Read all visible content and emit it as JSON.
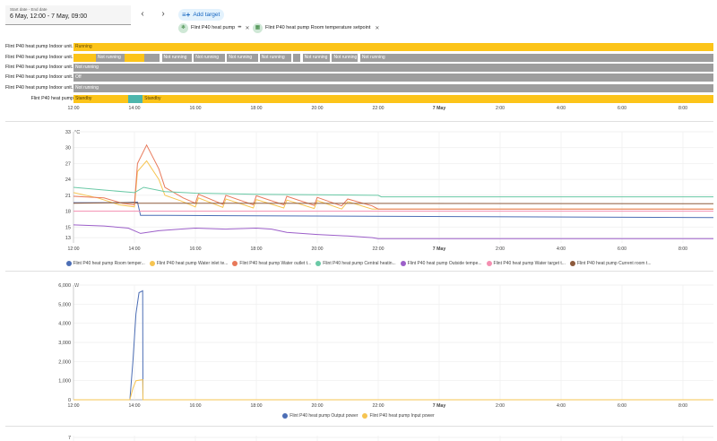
{
  "header": {
    "date_label": "Start date - End date",
    "date_value": "6 May, 12:00 - 7 May, 09:00",
    "add_target": "Add target",
    "targets": [
      {
        "label": "Flint P40 heat pump"
      },
      {
        "label": "Flint P40 heat pump Room temperature setpoint"
      }
    ]
  },
  "timeline": {
    "rows": [
      {
        "name": "Flint P40 heat pump Indoor unit...",
        "segments": [
          {
            "label": "Running",
            "kind": "run",
            "from": 0.0,
            "to": 1.0
          }
        ]
      },
      {
        "name": "Flint P40 heat pump Indoor unit...",
        "segments": [
          {
            "label": "",
            "kind": "run",
            "from": 0.0,
            "to": 0.035
          },
          {
            "label": "Not running",
            "kind": "not",
            "from": 0.035,
            "to": 0.08
          },
          {
            "label": "",
            "kind": "run",
            "from": 0.08,
            "to": 0.11
          },
          {
            "label": "",
            "kind": "not",
            "from": 0.11,
            "to": 0.135
          },
          {
            "label": "Not running",
            "kind": "not",
            "from": 0.138,
            "to": 0.185
          },
          {
            "label": "Not running",
            "kind": "not",
            "from": 0.188,
            "to": 0.237
          },
          {
            "label": "Not running",
            "kind": "not",
            "from": 0.24,
            "to": 0.288
          },
          {
            "label": "Not running",
            "kind": "not",
            "from": 0.291,
            "to": 0.34
          },
          {
            "label": "",
            "kind": "not",
            "from": 0.343,
            "to": 0.355
          },
          {
            "label": "Not running",
            "kind": "not",
            "from": 0.358,
            "to": 0.4
          },
          {
            "label": "Not running",
            "kind": "not",
            "from": 0.404,
            "to": 0.444
          },
          {
            "label": "Not running",
            "kind": "not",
            "from": 0.448,
            "to": 1.0
          }
        ]
      },
      {
        "name": "Flint P40 heat pump Indoor unit...",
        "segments": [
          {
            "label": "Not running",
            "kind": "not",
            "from": 0.0,
            "to": 1.0
          }
        ]
      },
      {
        "name": "Flint P40 heat pump Indoor unit...",
        "segments": [
          {
            "label": "Off",
            "kind": "not",
            "from": 0.0,
            "to": 1.0
          }
        ]
      },
      {
        "name": "Flint P40 heat pump Indoor unit...",
        "segments": [
          {
            "label": "Not running",
            "kind": "not",
            "from": 0.0,
            "to": 1.0
          }
        ]
      },
      {
        "name": "Flint P40 heat pump",
        "segments": [
          {
            "label": "Standby",
            "kind": "stby",
            "from": 0.0,
            "to": 0.085
          },
          {
            "label": "",
            "kind": "stby2",
            "from": 0.085,
            "to": 0.108
          },
          {
            "label": "Standby",
            "kind": "stby",
            "from": 0.108,
            "to": 1.0
          }
        ]
      }
    ]
  },
  "x_ticks": [
    {
      "label": "12:00",
      "t": 0
    },
    {
      "label": "14:00",
      "t": 2
    },
    {
      "label": "16:00",
      "t": 4
    },
    {
      "label": "18:00",
      "t": 6
    },
    {
      "label": "20:00",
      "t": 8
    },
    {
      "label": "22:00",
      "t": 10
    },
    {
      "label": "7 May",
      "t": 12,
      "bold": true
    },
    {
      "label": "2:00",
      "t": 14
    },
    {
      "label": "4:00",
      "t": 16
    },
    {
      "label": "6:00",
      "t": 18
    },
    {
      "label": "8:00",
      "t": 20
    }
  ],
  "chart_data": [
    {
      "type": "line",
      "ylabel": "°C",
      "ylim": [
        12,
        33
      ],
      "yticks": [
        13,
        15,
        18,
        21,
        24,
        27,
        30,
        33
      ],
      "xlim_hours": [
        0,
        21
      ],
      "x_unit": "hours since 6 May 12:00",
      "series": [
        {
          "name": "Flint P40 heat pump Room temper...",
          "color": "#4c6eb5",
          "points": [
            [
              0,
              19.6
            ],
            [
              1.5,
              19.6
            ],
            [
              2.1,
              19.7
            ],
            [
              2.2,
              17.2
            ],
            [
              3,
              17.2
            ],
            [
              21,
              16.8
            ]
          ]
        },
        {
          "name": "Flint P40 heat pump Water inlet te...",
          "color": "#f6c451",
          "points": [
            [
              0,
              21.5
            ],
            [
              0.8,
              20.5
            ],
            [
              1.5,
              19.2
            ],
            [
              2,
              18.8
            ],
            [
              2.1,
              25.5
            ],
            [
              2.4,
              27.5
            ],
            [
              2.8,
              24
            ],
            [
              3,
              21
            ],
            [
              3.5,
              20
            ],
            [
              4,
              18.8
            ],
            [
              4.1,
              20.5
            ],
            [
              4.9,
              18.7
            ],
            [
              5,
              20.3
            ],
            [
              5.9,
              18.6
            ],
            [
              6,
              20.2
            ],
            [
              6.9,
              18.6
            ],
            [
              7,
              20.1
            ],
            [
              7.9,
              18.5
            ],
            [
              8,
              20
            ],
            [
              8.8,
              18.4
            ],
            [
              9,
              19.8
            ],
            [
              9.8,
              18.4
            ],
            [
              10,
              18.4
            ],
            [
              21,
              18.4
            ]
          ]
        },
        {
          "name": "Flint P40 heat pump Water outlet t...",
          "color": "#e8795a",
          "points": [
            [
              0,
              20.8
            ],
            [
              1,
              20.5
            ],
            [
              1.6,
              19.5
            ],
            [
              2,
              19.2
            ],
            [
              2.1,
              27
            ],
            [
              2.4,
              30.5
            ],
            [
              2.8,
              26
            ],
            [
              3,
              22.5
            ],
            [
              3.6,
              20.5
            ],
            [
              4,
              19.5
            ],
            [
              4.1,
              21.2
            ],
            [
              4.9,
              19.3
            ],
            [
              5,
              21
            ],
            [
              5.9,
              19.2
            ],
            [
              6,
              20.9
            ],
            [
              6.9,
              19.2
            ],
            [
              7,
              20.8
            ],
            [
              7.9,
              19.1
            ],
            [
              8,
              20.6
            ],
            [
              8.8,
              19
            ],
            [
              9,
              20.3
            ],
            [
              9.8,
              19
            ],
            [
              10,
              18.4
            ],
            [
              21,
              18.4
            ]
          ]
        },
        {
          "name": "Flint P40 heat pump Central heatin...",
          "color": "#6ac9a6",
          "points": [
            [
              0,
              22.5
            ],
            [
              1,
              22
            ],
            [
              2,
              21.5
            ],
            [
              2.3,
              22.5
            ],
            [
              3,
              21.7
            ],
            [
              4,
              21.4
            ],
            [
              6,
              21.2
            ],
            [
              8,
              21.1
            ],
            [
              10,
              21
            ],
            [
              10.1,
              20.7
            ],
            [
              21,
              20.7
            ]
          ]
        },
        {
          "name": "Flint P40 heat pump Outside tempe...",
          "color": "#9c5fc9",
          "points": [
            [
              0,
              15.4
            ],
            [
              1,
              15.2
            ],
            [
              1.8,
              14.8
            ],
            [
              2.2,
              13.8
            ],
            [
              2.8,
              14.3
            ],
            [
              3.5,
              14.6
            ],
            [
              4,
              14.8
            ],
            [
              5,
              14.6
            ],
            [
              6,
              14.8
            ],
            [
              6.5,
              14.6
            ],
            [
              7,
              14
            ],
            [
              8,
              13.6
            ],
            [
              9,
              13.3
            ],
            [
              9.8,
              13
            ],
            [
              10,
              12.8
            ],
            [
              21,
              12.8
            ]
          ]
        },
        {
          "name": "Flint P40 heat pump Water target t...",
          "color": "#f48fb1",
          "points": [
            [
              0,
              18
            ],
            [
              21,
              18
            ]
          ]
        },
        {
          "name": "Flint P40 heat pump Current room t...",
          "color": "#8d5a3c",
          "points": [
            [
              0,
              19.5
            ],
            [
              2,
              19.6
            ],
            [
              2.1,
              19.5
            ],
            [
              21,
              19.4
            ]
          ]
        }
      ]
    },
    {
      "type": "line",
      "ylabel": "W",
      "ylim": [
        0,
        6000
      ],
      "yticks": [
        0,
        1000,
        2000,
        3000,
        4000,
        5000,
        6000
      ],
      "xlim_hours": [
        0,
        21
      ],
      "x_unit": "hours since 6 May 12:00",
      "series": [
        {
          "name": "Flint P40 heat pump Output power",
          "color": "#4c6eb5",
          "points": [
            [
              0,
              0
            ],
            [
              1.85,
              0
            ],
            [
              1.95,
              2000
            ],
            [
              2.05,
              4500
            ],
            [
              2.15,
              5600
            ],
            [
              2.27,
              5700
            ],
            [
              2.28,
              0
            ],
            [
              21,
              0
            ]
          ]
        },
        {
          "name": "Flint P40 heat pump Input power",
          "color": "#f6c451",
          "points": [
            [
              0,
              0
            ],
            [
              1.85,
              0
            ],
            [
              1.95,
              600
            ],
            [
              2.05,
              1000
            ],
            [
              2.27,
              1050
            ],
            [
              2.28,
              0
            ],
            [
              21,
              0
            ]
          ]
        }
      ]
    }
  ],
  "bottom_chart": {
    "ytick_top": "7"
  }
}
